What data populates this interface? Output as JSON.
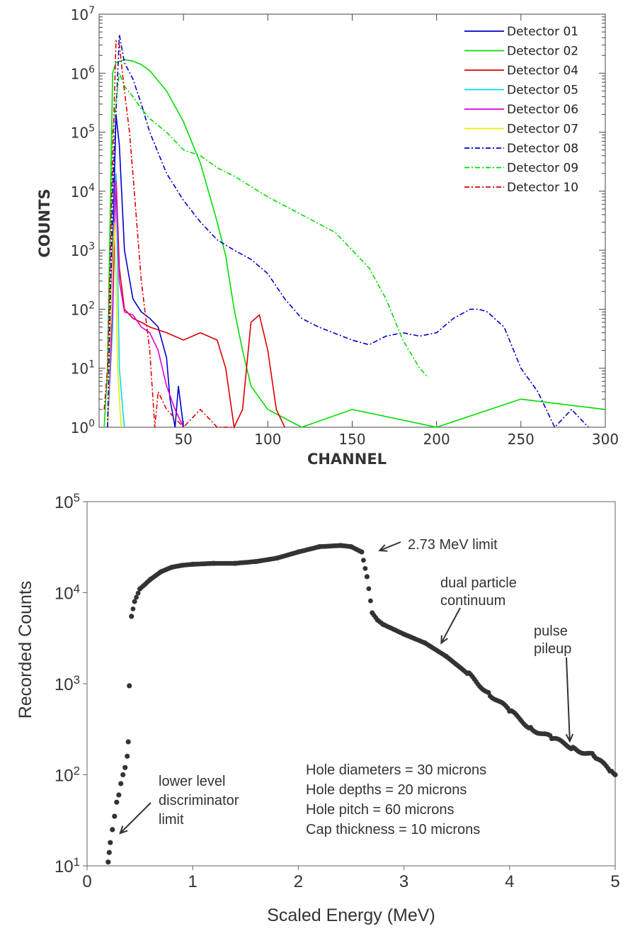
{
  "chart_data": [
    {
      "type": "line",
      "xlabel": "CHANNEL",
      "ylabel": "COUNTS",
      "xlim": [
        0,
        300
      ],
      "ylim": [
        1,
        10000000
      ],
      "yscale": "log",
      "x_ticks": [
        "50",
        "100",
        "150",
        "200",
        "250",
        "300"
      ],
      "y_ticks": [
        {
          "base": "10",
          "exp": "0"
        },
        {
          "base": "10",
          "exp": "1"
        },
        {
          "base": "10",
          "exp": "2"
        },
        {
          "base": "10",
          "exp": "3"
        },
        {
          "base": "10",
          "exp": "4"
        },
        {
          "base": "10",
          "exp": "5"
        },
        {
          "base": "10",
          "exp": "6"
        },
        {
          "base": "10",
          "exp": "7"
        }
      ],
      "legend_position": "top-right",
      "series": [
        {
          "name": "Detector 01",
          "color": "#0000cc",
          "dash": "solid",
          "x": [
            5,
            8,
            10,
            12,
            15,
            20,
            25,
            30,
            35,
            40,
            42,
            45,
            47,
            50
          ],
          "y": [
            1,
            1000,
            200000,
            60000,
            1000,
            150,
            90,
            70,
            50,
            15,
            3,
            1,
            5,
            1
          ]
        },
        {
          "name": "Detector 02",
          "color": "#00dd00",
          "dash": "solid",
          "x": [
            3,
            5,
            8,
            10,
            15,
            20,
            25,
            30,
            40,
            50,
            60,
            70,
            75,
            80,
            85,
            90,
            100,
            120,
            150,
            200,
            250,
            300
          ],
          "y": [
            1,
            10,
            1000000,
            1500000,
            1700000,
            1600000,
            1400000,
            1100000,
            500000,
            150000,
            30000,
            3000,
            800,
            100,
            20,
            5,
            2,
            1,
            2,
            1,
            3,
            2
          ]
        },
        {
          "name": "Detector 04",
          "color": "#dd0000",
          "dash": "solid",
          "x": [
            5,
            8,
            10,
            12,
            15,
            20,
            25,
            30,
            40,
            50,
            60,
            70,
            75,
            80,
            85,
            90,
            95,
            100,
            105,
            110
          ],
          "y": [
            1,
            100,
            20000,
            500,
            100,
            70,
            60,
            50,
            40,
            30,
            40,
            30,
            10,
            1,
            2,
            60,
            80,
            20,
            2,
            1
          ]
        },
        {
          "name": "Detector 05",
          "color": "#00ddee",
          "dash": "solid",
          "x": [
            5,
            8,
            10,
            12,
            14,
            15
          ],
          "y": [
            1,
            50,
            20000,
            10,
            2,
            1
          ]
        },
        {
          "name": "Detector 06",
          "color": "#dd00dd",
          "dash": "solid",
          "x": [
            5,
            8,
            10,
            12,
            15,
            20,
            25,
            30,
            35,
            40,
            45,
            50
          ],
          "y": [
            1,
            100,
            15000,
            300,
            90,
            80,
            50,
            40,
            20,
            5,
            2,
            1
          ]
        },
        {
          "name": "Detector 07",
          "color": "#eeee00",
          "dash": "solid",
          "x": [
            5,
            7,
            9,
            10,
            11,
            13
          ],
          "y": [
            1,
            100,
            3000,
            400,
            10,
            1
          ]
        },
        {
          "name": "Detector 08",
          "color": "#0000cc",
          "dash": "dashdot",
          "x": [
            5,
            8,
            12,
            15,
            20,
            25,
            30,
            40,
            50,
            60,
            70,
            80,
            90,
            100,
            110,
            120,
            130,
            150,
            160,
            170,
            180,
            190,
            200,
            210,
            220,
            225,
            230,
            240,
            250,
            260,
            270,
            280,
            290
          ],
          "y": [
            1,
            10000,
            4500000,
            1500000,
            800000,
            300000,
            100000,
            20000,
            7000,
            3000,
            1500,
            1000,
            700,
            400,
            150,
            70,
            50,
            30,
            25,
            35,
            40,
            35,
            40,
            70,
            100,
            100,
            90,
            50,
            10,
            4,
            1,
            2,
            1
          ]
        },
        {
          "name": "Detector 09",
          "color": "#00dd00",
          "dash": "dashdot",
          "x": [
            5,
            8,
            12,
            15,
            20,
            25,
            30,
            40,
            50,
            60,
            70,
            80,
            100,
            120,
            140,
            150,
            160,
            170,
            180,
            190,
            195
          ],
          "y": [
            10,
            100000,
            1000000,
            600000,
            400000,
            250000,
            170000,
            100000,
            50000,
            40000,
            25000,
            18000,
            8000,
            4000,
            2000,
            1000,
            500,
            150,
            30,
            10,
            7
          ]
        },
        {
          "name": "Detector 10",
          "color": "#dd0000",
          "dash": "dashdot",
          "x": [
            3,
            5,
            8,
            10,
            12,
            15,
            18,
            20,
            25,
            30,
            33,
            35,
            40,
            50,
            60,
            70,
            80
          ],
          "y": [
            2,
            10,
            30000,
            3500000,
            3000000,
            500000,
            100000,
            20000,
            300,
            20,
            1,
            4,
            2,
            1,
            2,
            1,
            1
          ]
        }
      ]
    },
    {
      "type": "scatter",
      "xlabel": "Scaled Energy (MeV)",
      "ylabel": "Recorded Counts",
      "xlim": [
        0,
        5
      ],
      "ylim": [
        10,
        100000
      ],
      "yscale": "log",
      "x_ticks": [
        "0",
        "1",
        "2",
        "3",
        "4",
        "5"
      ],
      "y_ticks": [
        {
          "base": "10",
          "exp": "1"
        },
        {
          "base": "10",
          "exp": "2"
        },
        {
          "base": "10",
          "exp": "3"
        },
        {
          "base": "10",
          "exp": "4"
        },
        {
          "base": "10",
          "exp": "5"
        }
      ],
      "series": [
        {
          "color": "#333333",
          "x": [
            0.2,
            0.21,
            0.22,
            0.24,
            0.26,
            0.28,
            0.3,
            0.32,
            0.34,
            0.36,
            0.38,
            0.39,
            0.4,
            0.42,
            0.45,
            0.5,
            0.6,
            0.7,
            0.8,
            0.9,
            1.0,
            1.2,
            1.4,
            1.6,
            1.8,
            2.0,
            2.2,
            2.4,
            2.5,
            2.6,
            2.65,
            2.7,
            2.75,
            2.8,
            3.0,
            3.2,
            3.4,
            3.6,
            3.8,
            4.0,
            4.2,
            4.4,
            4.6,
            4.8,
            4.95,
            5.0
          ],
          "y": [
            11,
            14,
            18,
            25,
            35,
            50,
            60,
            80,
            100,
            120,
            160,
            230,
            950,
            5500,
            8000,
            11000,
            14000,
            17000,
            19000,
            20000,
            20500,
            21000,
            21000,
            22000,
            24000,
            28000,
            32000,
            33000,
            32000,
            28000,
            15000,
            6000,
            5000,
            4500,
            3500,
            2800,
            2000,
            1300,
            800,
            500,
            330,
            250,
            200,
            160,
            110,
            100
          ]
        }
      ],
      "annotations": [
        {
          "text": "2.73 MeV limit",
          "x": 2.73,
          "y": 28000
        },
        {
          "text": [
            "dual particle",
            "continuum"
          ],
          "x": 3.3,
          "y": 2700
        },
        {
          "text": [
            "pulse",
            "pileup"
          ],
          "x": 4.55,
          "y": 210
        },
        {
          "text": [
            "lower level",
            "discriminator",
            "limit"
          ],
          "x": 0.3,
          "y": 22
        }
      ],
      "info_box": [
        "Hole diameters = 30 microns",
        "Hole depths = 20 microns",
        "Hole pitch = 60 microns",
        "Cap thickness = 10 microns"
      ]
    }
  ]
}
